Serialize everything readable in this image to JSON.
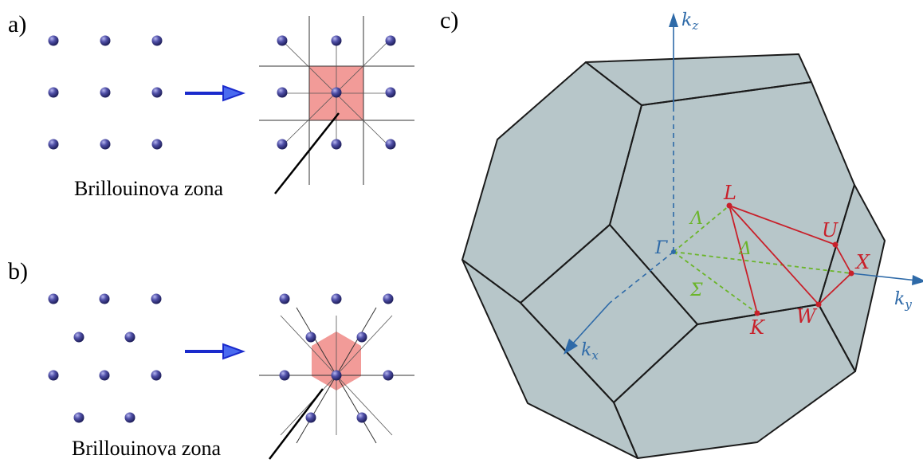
{
  "panels": {
    "a": {
      "label": "a)",
      "caption": "Brillouinova zona"
    },
    "b": {
      "label": "b)",
      "caption": "Brillouinova zona"
    },
    "c": {
      "label": "c)"
    }
  },
  "points": {
    "L": "L",
    "U": "U",
    "X": "X",
    "W": "W",
    "K": "K",
    "Gamma": "Γ",
    "Lambda": "Λ",
    "Delta": "Δ",
    "Sigma": "Σ"
  },
  "axes": {
    "kz": "k",
    "kz_sub": "z",
    "ky": "k",
    "ky_sub": "y",
    "kx": "k",
    "kx_sub": "x"
  },
  "colors": {
    "atom": "#4a4aa0",
    "arrow": "#1a2acc",
    "zone_fill": "#f08a86",
    "path_red": "#c8202a",
    "path_green": "#6bb52a",
    "axis_blue": "#2e6aa8",
    "face_light": "#d4e3e6",
    "face_mid": "#bccacd",
    "face_dark": "#a3b3b6"
  }
}
